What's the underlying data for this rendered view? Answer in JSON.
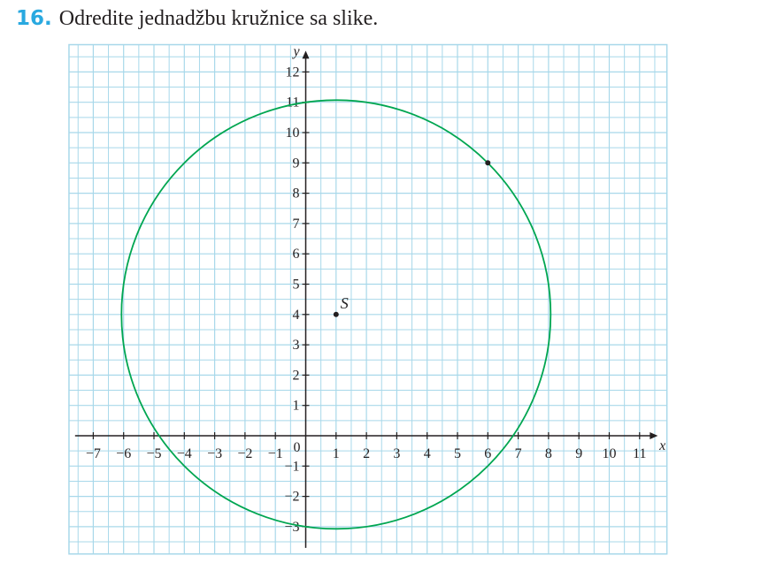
{
  "task": {
    "number": "16.",
    "text": "Odredite jednadžbu kružnice sa slike."
  },
  "colors": {
    "grid": "#a8d8ea",
    "grid_border": "#a8d8ea",
    "axis": "#231f20",
    "circle": "#00a651",
    "number_color": "#29a9e0"
  },
  "chart_data": {
    "type": "scatter",
    "grid": true,
    "x_range": [
      -8,
      12
    ],
    "y_range": [
      -4,
      13
    ],
    "x_label": "x",
    "y_label": "y",
    "origin_label": "0",
    "x_ticks": [
      {
        "value": -7,
        "label": "−7"
      },
      {
        "value": -6,
        "label": "−6"
      },
      {
        "value": -5,
        "label": "−5"
      },
      {
        "value": -4,
        "label": "−4"
      },
      {
        "value": -3,
        "label": "−3"
      },
      {
        "value": -2,
        "label": "−2"
      },
      {
        "value": -1,
        "label": "−1"
      },
      {
        "value": 1,
        "label": "1"
      },
      {
        "value": 2,
        "label": "2"
      },
      {
        "value": 3,
        "label": "3"
      },
      {
        "value": 4,
        "label": "4"
      },
      {
        "value": 5,
        "label": "5"
      },
      {
        "value": 6,
        "label": "6"
      },
      {
        "value": 7,
        "label": "7"
      },
      {
        "value": 8,
        "label": "8"
      },
      {
        "value": 9,
        "label": "9"
      },
      {
        "value": 10,
        "label": "10"
      },
      {
        "value": 11,
        "label": "11"
      }
    ],
    "y_ticks": [
      {
        "value": -3,
        "label": "−3"
      },
      {
        "value": -2,
        "label": "−2"
      },
      {
        "value": -1,
        "label": "−1"
      },
      {
        "value": 1,
        "label": "1"
      },
      {
        "value": 2,
        "label": "2"
      },
      {
        "value": 3,
        "label": "3"
      },
      {
        "value": 4,
        "label": "4"
      },
      {
        "value": 5,
        "label": "5"
      },
      {
        "value": 6,
        "label": "6"
      },
      {
        "value": 7,
        "label": "7"
      },
      {
        "value": 8,
        "label": "8"
      },
      {
        "value": 9,
        "label": "9"
      },
      {
        "value": 10,
        "label": "10"
      },
      {
        "value": 11,
        "label": "11"
      },
      {
        "value": 12,
        "label": "12"
      }
    ],
    "circle": {
      "center": [
        1,
        4
      ],
      "radius": 7.07
    },
    "points": [
      {
        "x": 1,
        "y": 4,
        "label": "S"
      },
      {
        "x": 6,
        "y": 9,
        "label": ""
      }
    ]
  }
}
